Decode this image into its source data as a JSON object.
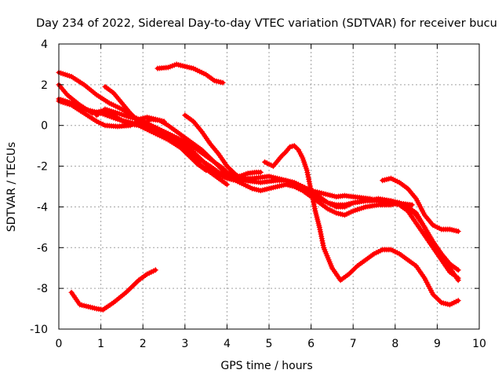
{
  "chart_data": {
    "type": "scatter",
    "title": "Day 234 of 2022, Sidereal Day-to-day VTEC variation (SDTVAR) for receiver bucu",
    "xlabel": "GPS time / hours",
    "ylabel": "SDTVAR / TECUs",
    "xlim": [
      0,
      10
    ],
    "ylim": [
      -10,
      4
    ],
    "xticks": [
      0,
      1,
      2,
      3,
      4,
      5,
      6,
      7,
      8,
      9,
      10
    ],
    "yticks": [
      -10,
      -8,
      -6,
      -4,
      -2,
      0,
      2,
      4
    ],
    "grid": true,
    "marker": "plus",
    "color": "#ff0000",
    "series": [
      {
        "name": "track-1",
        "x": [
          0.3,
          0.5,
          0.7,
          0.9,
          1.05,
          1.3,
          1.6,
          1.9,
          2.1,
          2.3
        ],
        "y": [
          -8.2,
          -8.8,
          -8.9,
          -9.0,
          -9.05,
          -8.7,
          -8.2,
          -7.6,
          -7.3,
          -7.1
        ]
      },
      {
        "name": "track-2",
        "x": [
          2.35,
          2.6,
          2.8,
          3.0,
          3.2,
          3.5,
          3.7,
          3.9
        ],
        "y": [
          2.8,
          2.85,
          3.0,
          2.9,
          2.8,
          2.5,
          2.2,
          2.1
        ]
      },
      {
        "name": "track-3",
        "x": [
          0.0,
          0.3,
          0.6,
          1.0,
          1.4,
          1.8,
          2.2,
          2.6,
          2.9,
          3.0,
          3.3,
          3.6,
          3.8,
          4.0,
          4.2,
          4.4,
          4.6,
          4.8,
          5.0,
          5.2,
          5.4,
          5.6,
          5.8,
          6.0,
          6.2,
          6.4,
          6.6,
          6.8,
          7.0,
          7.3,
          7.6,
          7.9,
          8.1,
          8.3,
          8.5,
          8.7,
          8.9,
          9.1,
          9.3,
          9.5
        ],
        "y": [
          1.3,
          1.1,
          0.8,
          0.6,
          0.3,
          0.1,
          -0.2,
          -0.5,
          -0.9,
          -1.1,
          -1.6,
          -2.0,
          -2.3,
          -2.5,
          -2.6,
          -2.7,
          -2.75,
          -2.8,
          -2.75,
          -2.7,
          -2.7,
          -2.8,
          -3.0,
          -3.2,
          -3.5,
          -3.8,
          -4.0,
          -4.0,
          -3.8,
          -3.7,
          -3.7,
          -3.8,
          -3.9,
          -4.2,
          -4.8,
          -5.4,
          -6.0,
          -6.6,
          -7.2,
          -7.5
        ]
      },
      {
        "name": "track-4",
        "x": [
          0.0,
          0.3,
          0.6,
          0.9,
          1.2,
          1.5,
          1.8,
          2.1,
          2.4,
          2.7,
          3.0,
          3.3,
          3.5,
          3.7,
          3.9,
          4.0,
          4.2,
          4.4,
          4.6,
          4.8,
          5.0,
          5.2,
          5.4,
          5.6,
          5.8,
          6.0,
          6.2,
          6.4,
          6.6,
          6.8,
          7.0,
          7.3,
          7.6,
          7.9,
          8.1,
          8.3,
          8.5,
          8.7,
          8.9,
          9.1,
          9.3,
          9.5
        ],
        "y": [
          2.6,
          2.4,
          2.0,
          1.5,
          1.1,
          0.8,
          0.4,
          0.1,
          -0.2,
          -0.5,
          -0.8,
          -1.2,
          -1.5,
          -1.8,
          -2.1,
          -2.3,
          -2.5,
          -2.6,
          -2.6,
          -2.55,
          -2.5,
          -2.6,
          -2.7,
          -2.9,
          -3.1,
          -3.4,
          -3.6,
          -3.8,
          -3.9,
          -3.9,
          -3.8,
          -3.7,
          -3.6,
          -3.7,
          -3.8,
          -4.0,
          -4.4,
          -5.0,
          -5.7,
          -6.3,
          -6.8,
          -7.1
        ]
      },
      {
        "name": "track-5",
        "x": [
          0.0,
          0.2,
          0.5,
          0.8,
          1.0,
          1.3,
          1.6,
          1.9,
          2.2,
          2.5,
          2.8,
          3.0,
          3.2,
          3.4,
          3.6,
          3.8,
          4.0
        ],
        "y": [
          2.0,
          1.5,
          1.0,
          0.6,
          0.7,
          0.5,
          0.1,
          0.0,
          -0.3,
          -0.6,
          -0.9,
          -1.2,
          -1.6,
          -2.0,
          -2.3,
          -2.6,
          -2.9
        ]
      },
      {
        "name": "track-6",
        "x": [
          0.0,
          0.3,
          0.6,
          0.9,
          1.1,
          1.4,
          1.7,
          1.9,
          2.1,
          2.3,
          2.6,
          2.8,
          3.0,
          3.2,
          3.4,
          3.6,
          3.8,
          4.0,
          4.2,
          4.4,
          4.6,
          4.8,
          5.0,
          5.2,
          5.4,
          5.6,
          5.8,
          6.0,
          6.2,
          6.4,
          6.6,
          6.8,
          7.0,
          7.3,
          7.6,
          7.9,
          8.1,
          8.3,
          8.5,
          8.7,
          8.9,
          9.1,
          9.3,
          9.5
        ],
        "y": [
          1.2,
          1.0,
          0.6,
          0.2,
          0.0,
          -0.05,
          0.0,
          0.2,
          0.1,
          -0.2,
          -0.4,
          -0.7,
          -1.0,
          -1.3,
          -1.7,
          -2.1,
          -2.4,
          -2.6,
          -2.7,
          -2.9,
          -3.1,
          -3.2,
          -3.1,
          -3.0,
          -2.9,
          -3.0,
          -3.2,
          -3.5,
          -3.8,
          -4.1,
          -4.3,
          -4.4,
          -4.2,
          -4.0,
          -3.9,
          -3.9,
          -3.8,
          -4.0,
          -4.3,
          -5.0,
          -5.8,
          -6.5,
          -7.0,
          -7.6
        ]
      },
      {
        "name": "track-7",
        "x": [
          1.1,
          1.3,
          1.5,
          1.7,
          1.9,
          2.0,
          2.2,
          2.4,
          2.6,
          2.8,
          3.0,
          3.2,
          3.4,
          3.6,
          3.8,
          4.0
        ],
        "y": [
          1.9,
          1.6,
          1.1,
          0.6,
          0.2,
          0.1,
          0.3,
          0.25,
          0.0,
          -0.3,
          -0.6,
          -0.9,
          -1.2,
          -1.6,
          -2.0,
          -2.4
        ]
      },
      {
        "name": "track-8",
        "x": [
          0.9,
          1.1,
          1.4,
          1.7,
          1.9,
          2.1,
          2.3,
          2.5
        ],
        "y": [
          0.5,
          0.8,
          0.6,
          0.4,
          0.3,
          0.4,
          0.3,
          0.2
        ]
      },
      {
        "name": "track-9",
        "x": [
          3.0,
          3.2,
          3.4,
          3.6,
          3.8,
          4.0,
          4.2,
          4.4
        ],
        "y": [
          0.5,
          0.2,
          -0.3,
          -0.9,
          -1.4,
          -2.0,
          -2.4,
          -2.7
        ]
      },
      {
        "name": "track-10",
        "x": [
          2.0,
          2.3,
          2.6,
          2.9,
          3.1,
          3.3,
          3.5
        ],
        "y": [
          0.1,
          -0.3,
          -0.7,
          -1.1,
          -1.5,
          -1.9,
          -2.2
        ]
      },
      {
        "name": "track-11",
        "x": [
          3.9,
          4.1,
          4.3,
          4.5,
          4.7,
          4.8
        ],
        "y": [
          -2.5,
          -2.6,
          -2.5,
          -2.35,
          -2.3,
          -2.3
        ]
      },
      {
        "name": "track-12",
        "x": [
          4.9,
          5.1,
          5.3,
          5.4,
          5.5,
          5.6,
          5.7,
          5.8,
          5.9,
          6.0,
          6.1,
          6.2,
          6.3,
          6.5,
          6.7,
          6.9,
          7.1,
          7.3,
          7.5,
          7.7,
          7.9,
          8.1,
          8.3,
          8.5,
          8.7,
          8.9,
          9.1,
          9.3,
          9.5
        ],
        "y": [
          -1.8,
          -2.0,
          -1.5,
          -1.3,
          -1.05,
          -1.0,
          -1.2,
          -1.6,
          -2.2,
          -3.2,
          -4.2,
          -5.0,
          -6.0,
          -7.0,
          -7.6,
          -7.3,
          -6.9,
          -6.6,
          -6.3,
          -6.1,
          -6.1,
          -6.3,
          -6.6,
          -6.9,
          -7.5,
          -8.3,
          -8.7,
          -8.8,
          -8.6
        ]
      },
      {
        "name": "track-13",
        "x": [
          7.7,
          7.9,
          8.1,
          8.3,
          8.5,
          8.7,
          8.9,
          9.1,
          9.3,
          9.5
        ],
        "y": [
          -2.7,
          -2.6,
          -2.8,
          -3.1,
          -3.6,
          -4.4,
          -4.9,
          -5.1,
          -5.1,
          -5.2
        ]
      },
      {
        "name": "track-14",
        "x": [
          6.0,
          6.2,
          6.4,
          6.6,
          6.8,
          7.0,
          7.2,
          7.4,
          7.6,
          7.8,
          8.0,
          8.2,
          8.4
        ],
        "y": [
          -3.2,
          -3.3,
          -3.4,
          -3.5,
          -3.45,
          -3.5,
          -3.55,
          -3.6,
          -3.7,
          -3.75,
          -3.8,
          -3.85,
          -3.9
        ]
      }
    ]
  }
}
